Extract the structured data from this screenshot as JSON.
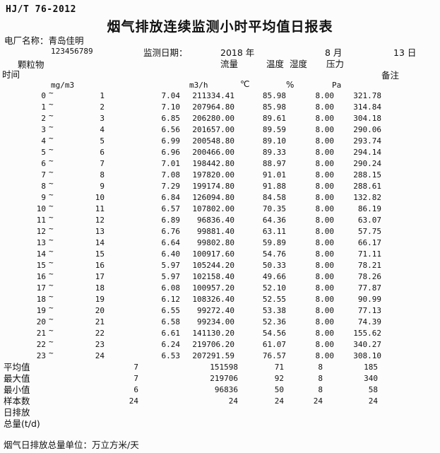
{
  "header": {
    "standard": "HJ/T 76-2012",
    "title": "烟气排放连续监测小时平均值日报表",
    "plant_label": "电厂名称：",
    "plant_name": "青岛佳明",
    "stray_mark": "`",
    "plant_code": "123456789",
    "date_label": "监测日期：",
    "year": "2018 年",
    "month": "8 月",
    "day": "13 日"
  },
  "columns": {
    "time": "时间",
    "dust": "颗粒物",
    "flow": "流量",
    "temp": "温度",
    "humidity": "湿度",
    "pressure": "压力",
    "note": "备注"
  },
  "units": {
    "dust": "mg/m3",
    "flow": "m3/h",
    "temp": "℃",
    "humidity": "%",
    "pressure": "Pa"
  },
  "table": {
    "range_separator": "~"
  },
  "rows": [
    {
      "h1": "0",
      "h2": "1",
      "dust": "7.04",
      "flow": "211334.41",
      "temp": "85.98",
      "hum": "8.00",
      "press": "321.78"
    },
    {
      "h1": "1",
      "h2": "2",
      "dust": "7.10",
      "flow": "207964.80",
      "temp": "85.98",
      "hum": "8.00",
      "press": "314.84"
    },
    {
      "h1": "2",
      "h2": "3",
      "dust": "6.85",
      "flow": "206280.00",
      "temp": "89.61",
      "hum": "8.00",
      "press": "304.18"
    },
    {
      "h1": "3",
      "h2": "4",
      "dust": "6.56",
      "flow": "201657.00",
      "temp": "89.59",
      "hum": "8.00",
      "press": "290.06"
    },
    {
      "h1": "4",
      "h2": "5",
      "dust": "6.99",
      "flow": "200548.80",
      "temp": "89.10",
      "hum": "8.00",
      "press": "293.74"
    },
    {
      "h1": "5",
      "h2": "6",
      "dust": "6.96",
      "flow": "200466.00",
      "temp": "89.33",
      "hum": "8.00",
      "press": "294.14"
    },
    {
      "h1": "6",
      "h2": "7",
      "dust": "7.01",
      "flow": "198442.80",
      "temp": "88.97",
      "hum": "8.00",
      "press": "290.24"
    },
    {
      "h1": "7",
      "h2": "8",
      "dust": "7.08",
      "flow": "197820.00",
      "temp": "91.01",
      "hum": "8.00",
      "press": "288.15"
    },
    {
      "h1": "8",
      "h2": "9",
      "dust": "7.29",
      "flow": "199174.80",
      "temp": "91.88",
      "hum": "8.00",
      "press": "288.61"
    },
    {
      "h1": "9",
      "h2": "10",
      "dust": "6.84",
      "flow": "126094.80",
      "temp": "84.58",
      "hum": "8.00",
      "press": "132.82"
    },
    {
      "h1": "10",
      "h2": "11",
      "dust": "6.57",
      "flow": "107802.00",
      "temp": "70.35",
      "hum": "8.00",
      "press": "86.19"
    },
    {
      "h1": "11",
      "h2": "12",
      "dust": "6.89",
      "flow": "96836.40",
      "temp": "64.36",
      "hum": "8.00",
      "press": "63.07"
    },
    {
      "h1": "12",
      "h2": "13",
      "dust": "6.76",
      "flow": "99881.40",
      "temp": "63.11",
      "hum": "8.00",
      "press": "57.75"
    },
    {
      "h1": "13",
      "h2": "14",
      "dust": "6.64",
      "flow": "99802.80",
      "temp": "59.89",
      "hum": "8.00",
      "press": "66.17"
    },
    {
      "h1": "14",
      "h2": "15",
      "dust": "6.40",
      "flow": "100917.60",
      "temp": "54.76",
      "hum": "8.00",
      "press": "71.11"
    },
    {
      "h1": "15",
      "h2": "16",
      "dust": "5.97",
      "flow": "105244.20",
      "temp": "50.33",
      "hum": "8.00",
      "press": "78.21"
    },
    {
      "h1": "16",
      "h2": "17",
      "dust": "5.97",
      "flow": "102158.40",
      "temp": "49.66",
      "hum": "8.00",
      "press": "78.26"
    },
    {
      "h1": "17",
      "h2": "18",
      "dust": "6.08",
      "flow": "100957.20",
      "temp": "52.10",
      "hum": "8.00",
      "press": "77.87"
    },
    {
      "h1": "18",
      "h2": "19",
      "dust": "6.12",
      "flow": "108326.40",
      "temp": "52.55",
      "hum": "8.00",
      "press": "90.99"
    },
    {
      "h1": "19",
      "h2": "20",
      "dust": "6.55",
      "flow": "99272.40",
      "temp": "53.38",
      "hum": "8.00",
      "press": "77.13"
    },
    {
      "h1": "20",
      "h2": "21",
      "dust": "6.58",
      "flow": "99234.00",
      "temp": "52.36",
      "hum": "8.00",
      "press": "74.39"
    },
    {
      "h1": "21",
      "h2": "22",
      "dust": "6.61",
      "flow": "141130.20",
      "temp": "54.56",
      "hum": "8.00",
      "press": "155.62"
    },
    {
      "h1": "22",
      "h2": "23",
      "dust": "6.24",
      "flow": "219706.20",
      "temp": "61.07",
      "hum": "8.00",
      "press": "340.27"
    },
    {
      "h1": "23",
      "h2": "24",
      "dust": "6.53",
      "flow": "207291.59",
      "temp": "76.57",
      "hum": "8.00",
      "press": "308.10"
    }
  ],
  "summary": [
    {
      "label": "平均值",
      "col1": "7",
      "flow": "151598",
      "temp": "71",
      "hum": "8",
      "press": "185"
    },
    {
      "label": "最大值",
      "col1": "7",
      "flow": "219706",
      "temp": "92",
      "hum": "8",
      "press": "340"
    },
    {
      "label": "最小值",
      "col1": "6",
      "flow": "96836",
      "temp": "50",
      "hum": "8",
      "press": "58"
    },
    {
      "label": "样本数",
      "col1": "24",
      "flow": "24",
      "temp": "24",
      "hum": "24",
      "press": "24"
    },
    {
      "label": "日排放",
      "col1": "",
      "flow": "",
      "temp": "",
      "hum": "",
      "press": ""
    },
    {
      "label": "总量(t/d)",
      "col1": "",
      "flow": "",
      "temp": "",
      "hum": "",
      "press": ""
    }
  ],
  "footer": {
    "unit_note": "烟气日排放总量单位：万立方米/天"
  }
}
